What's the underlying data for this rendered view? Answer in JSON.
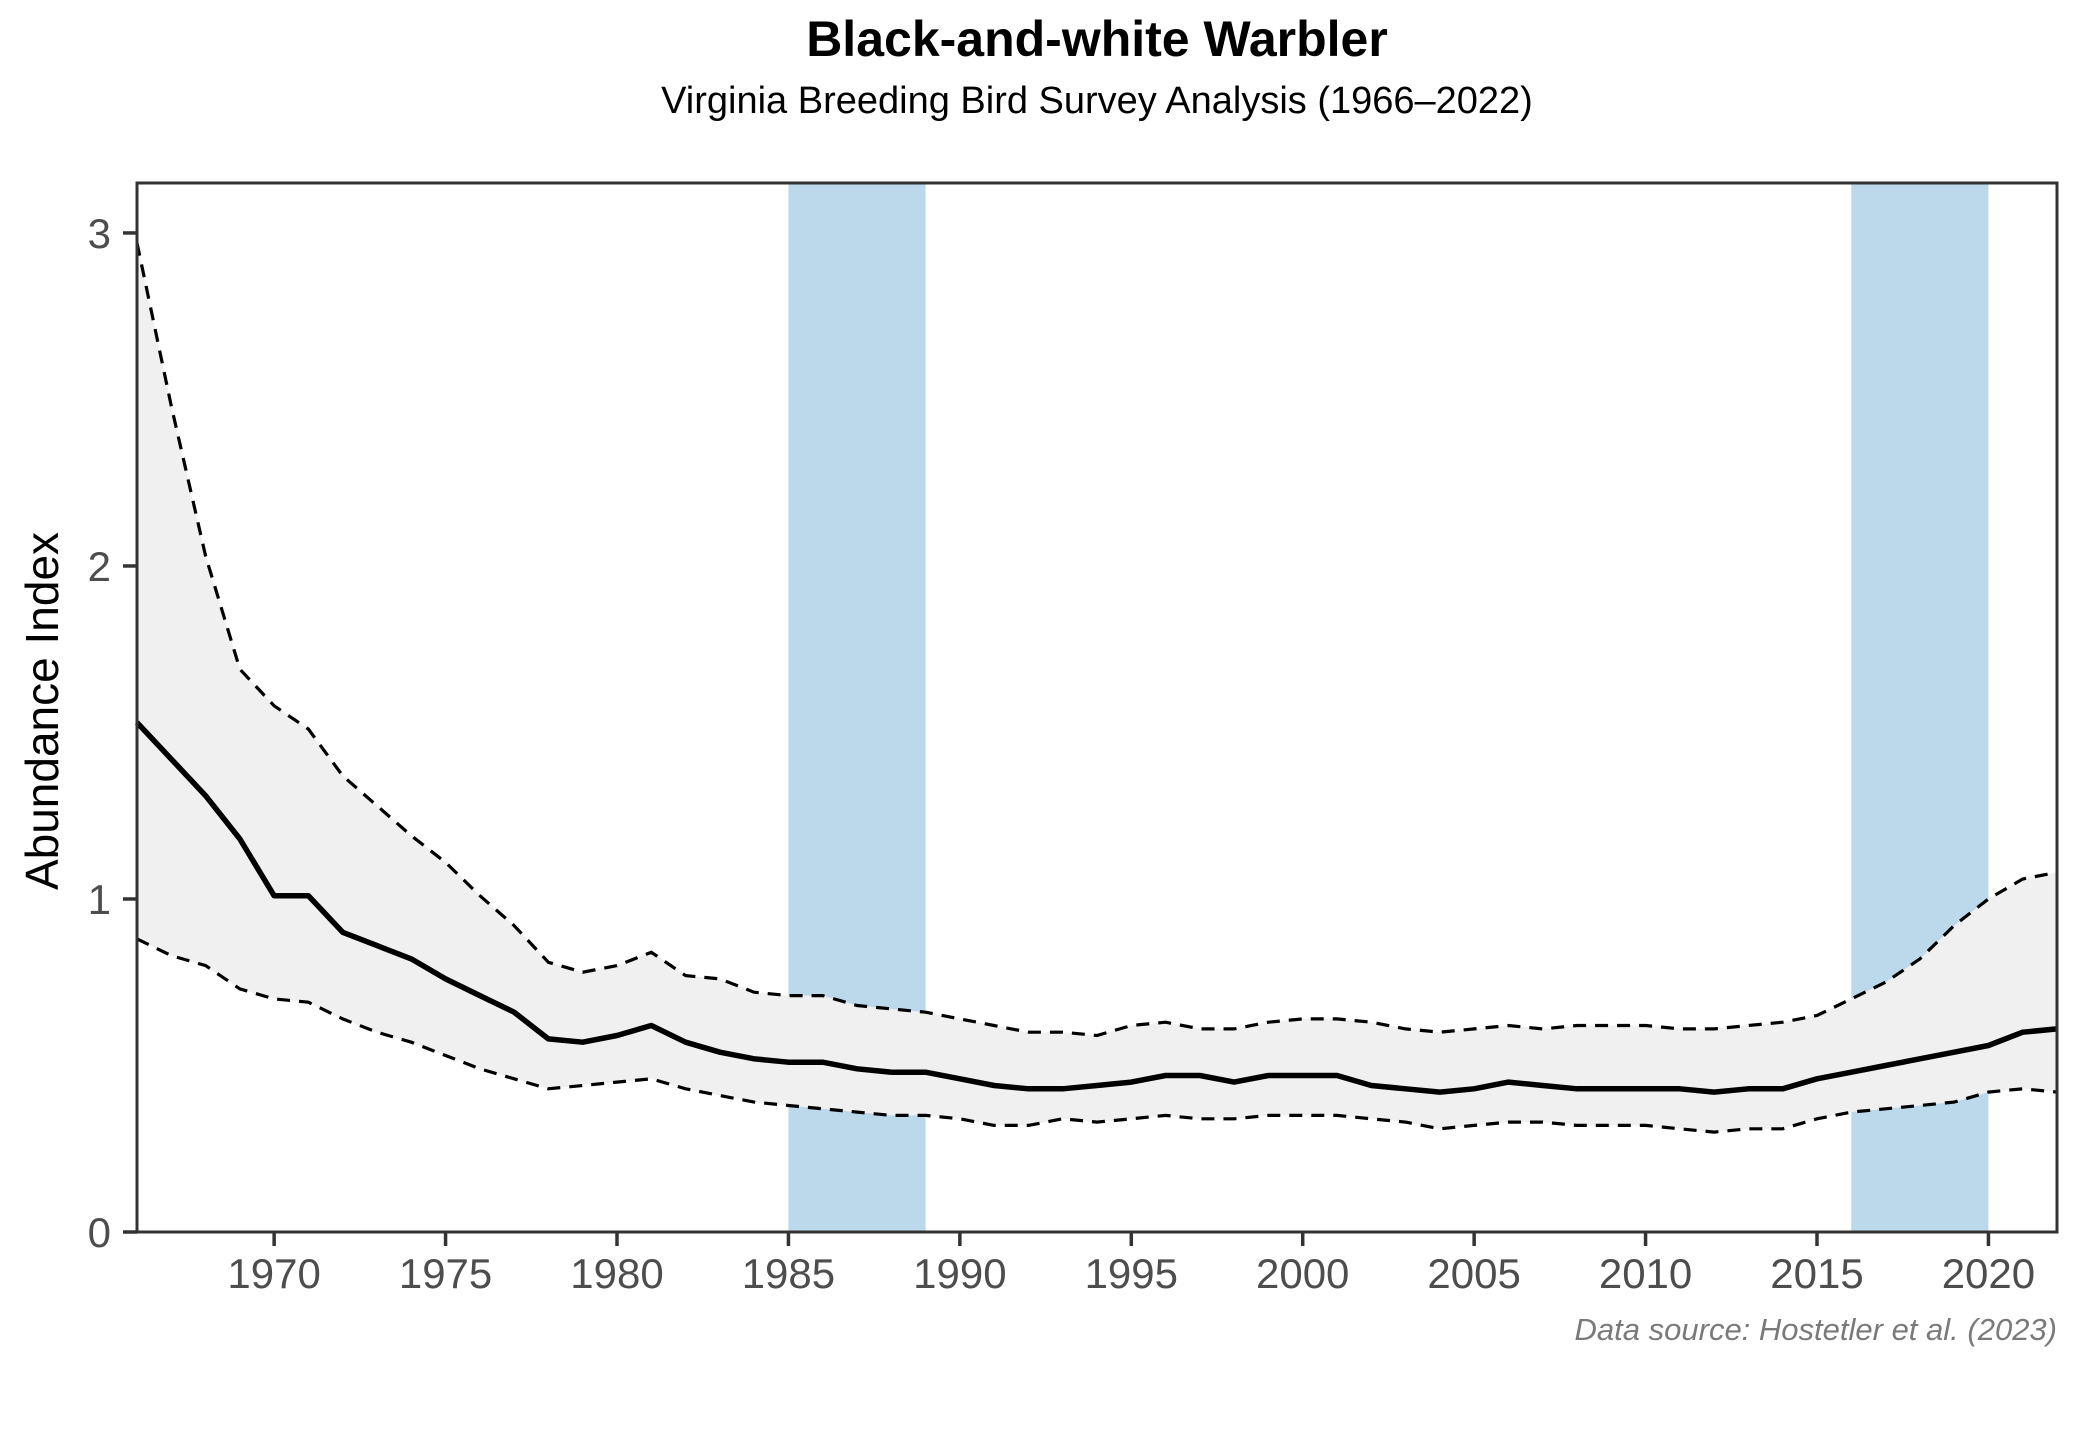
{
  "header": {
    "title": "Black-and-white Warbler",
    "subtitle": "Virginia Breeding Bird Survey Analysis (1966–2022)"
  },
  "caption": "Data source: Hostetler et al. (2023)",
  "axes": {
    "y_label": "Abundance Index"
  },
  "colors": {
    "highlight_band": "rgba(173,209,231,0.82)",
    "ribbon_fill": "#f0f0f0",
    "line": "#000000",
    "panel_border": "#333333",
    "tick_mark": "#333333",
    "tick_label": "#4d4d4d",
    "caption_text": "#7a7a7a"
  },
  "chart_data": {
    "type": "line",
    "title": "Black-and-white Warbler",
    "subtitle": "Virginia Breeding Bird Survey Analysis (1966–2022)",
    "xlabel": "",
    "ylabel": "Abundance Index",
    "xlim": [
      1966,
      2022
    ],
    "ylim": [
      0,
      3.15
    ],
    "x_ticks": [
      1970,
      1975,
      1980,
      1985,
      1990,
      1995,
      2000,
      2005,
      2010,
      2015,
      2020
    ],
    "y_ticks": [
      0,
      1,
      2,
      3
    ],
    "grid": false,
    "legend": "none",
    "highlight_bands": [
      {
        "from": 1985,
        "to": 1989
      },
      {
        "from": 2016,
        "to": 2020
      }
    ],
    "x": [
      1966,
      1967,
      1968,
      1969,
      1970,
      1971,
      1972,
      1973,
      1974,
      1975,
      1976,
      1977,
      1978,
      1979,
      1980,
      1981,
      1982,
      1983,
      1984,
      1985,
      1986,
      1987,
      1988,
      1989,
      1990,
      1991,
      1992,
      1993,
      1994,
      1995,
      1996,
      1997,
      1998,
      1999,
      2000,
      2001,
      2002,
      2003,
      2004,
      2005,
      2006,
      2007,
      2008,
      2009,
      2010,
      2011,
      2012,
      2013,
      2014,
      2015,
      2016,
      2017,
      2018,
      2019,
      2020,
      2021,
      2022
    ],
    "series": [
      {
        "name": "Abundance index",
        "style": "solid",
        "values": [
          1.53,
          1.42,
          1.31,
          1.18,
          1.01,
          1.01,
          0.9,
          0.86,
          0.82,
          0.76,
          0.71,
          0.66,
          0.58,
          0.57,
          0.59,
          0.62,
          0.57,
          0.54,
          0.52,
          0.51,
          0.51,
          0.49,
          0.48,
          0.48,
          0.46,
          0.44,
          0.43,
          0.43,
          0.44,
          0.45,
          0.47,
          0.47,
          0.45,
          0.47,
          0.47,
          0.47,
          0.44,
          0.43,
          0.42,
          0.43,
          0.45,
          0.44,
          0.43,
          0.43,
          0.43,
          0.43,
          0.42,
          0.43,
          0.43,
          0.46,
          0.48,
          0.5,
          0.52,
          0.54,
          0.56,
          0.6,
          0.61
        ]
      },
      {
        "name": "Lower 95% CI",
        "style": "dashed",
        "values": [
          0.88,
          0.83,
          0.8,
          0.73,
          0.7,
          0.69,
          0.64,
          0.6,
          0.57,
          0.53,
          0.49,
          0.46,
          0.43,
          0.44,
          0.45,
          0.46,
          0.43,
          0.41,
          0.39,
          0.38,
          0.37,
          0.36,
          0.35,
          0.35,
          0.34,
          0.32,
          0.32,
          0.34,
          0.33,
          0.34,
          0.35,
          0.34,
          0.34,
          0.35,
          0.35,
          0.35,
          0.34,
          0.33,
          0.31,
          0.32,
          0.33,
          0.33,
          0.32,
          0.32,
          0.32,
          0.31,
          0.3,
          0.31,
          0.31,
          0.34,
          0.36,
          0.37,
          0.38,
          0.39,
          0.42,
          0.43,
          0.42
        ]
      },
      {
        "name": "Upper 95% CI",
        "style": "dashed",
        "values": [
          2.97,
          2.48,
          2.03,
          1.69,
          1.58,
          1.51,
          1.37,
          1.28,
          1.19,
          1.11,
          1.01,
          0.92,
          0.81,
          0.78,
          0.8,
          0.84,
          0.77,
          0.76,
          0.72,
          0.71,
          0.71,
          0.68,
          0.67,
          0.66,
          0.64,
          0.62,
          0.6,
          0.6,
          0.59,
          0.62,
          0.63,
          0.61,
          0.61,
          0.63,
          0.64,
          0.64,
          0.63,
          0.61,
          0.6,
          0.61,
          0.62,
          0.61,
          0.62,
          0.62,
          0.62,
          0.61,
          0.61,
          0.62,
          0.63,
          0.65,
          0.7,
          0.75,
          0.82,
          0.92,
          1.0,
          1.06,
          1.08
        ]
      }
    ]
  }
}
